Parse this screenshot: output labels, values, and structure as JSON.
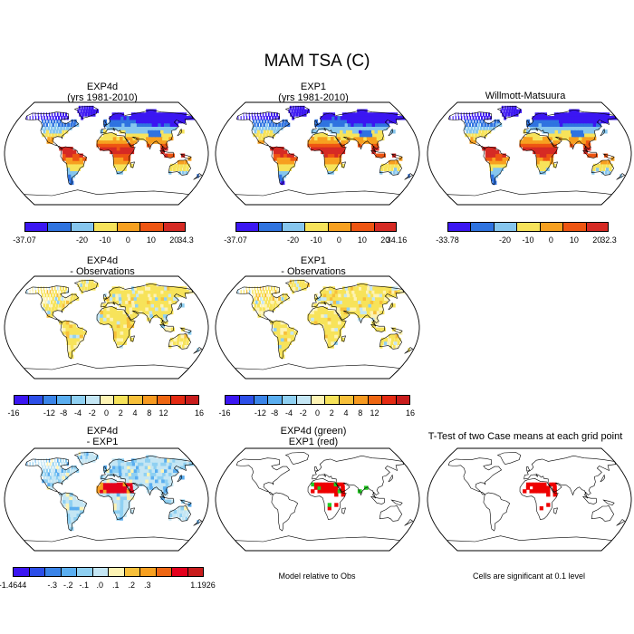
{
  "title": "MAM TSA (C)",
  "panels": [
    {
      "id": "exp4d",
      "title_lines": [
        "EXP4d",
        "(yrs 1981-2010)"
      ],
      "field": "absolute",
      "variant": 0
    },
    {
      "id": "exp1",
      "title_lines": [
        "EXP1",
        "(yrs 1981-2010)"
      ],
      "field": "absolute",
      "variant": 1
    },
    {
      "id": "obs",
      "title_lines": [
        "Willmott-Matsuura"
      ],
      "field": "absolute",
      "variant": 2
    },
    {
      "id": "exp4d-obs",
      "title_lines": [
        "EXP4d",
        "- Observations"
      ],
      "field": "bias",
      "variant": 0
    },
    {
      "id": "exp1-obs",
      "title_lines": [
        "EXP1",
        "- Observations"
      ],
      "field": "bias",
      "variant": 1
    },
    {
      "id": "exp4d-exp1",
      "title_lines": [
        "EXP4d",
        "- EXP1"
      ],
      "field": "diff",
      "variant": 0
    },
    {
      "id": "sig-green-red",
      "title_lines": [
        "EXP4d (green)",
        "EXP1 (red)"
      ],
      "field": "sigGreenRed",
      "variant": 0
    },
    {
      "id": "ttest",
      "title_lines": [
        "T-Test of two Case means at each grid point"
      ],
      "field": "sigRed",
      "variant": 0
    }
  ],
  "colorbars": [
    {
      "id": "cb-exp4d",
      "colors": [
        "#3b16f2",
        "#2f73e0",
        "#86c6ee",
        "#f7e35a",
        "#f7a020",
        "#ee5512",
        "#d62a24"
      ],
      "labels": [
        "-37.07",
        "-20",
        "-10",
        "0",
        "10",
        "20",
        "34.3"
      ]
    },
    {
      "id": "cb-exp1",
      "colors": [
        "#3b16f2",
        "#2f73e0",
        "#86c6ee",
        "#f7e35a",
        "#f7a020",
        "#ee5512",
        "#d62a24"
      ],
      "labels": [
        "-37.07",
        "-20",
        "-10",
        "0",
        "10",
        "20",
        "34.16"
      ]
    },
    {
      "id": "cb-obs",
      "colors": [
        "#3b16f2",
        "#2f73e0",
        "#86c6ee",
        "#f7e35a",
        "#f7a020",
        "#ee5512",
        "#d62a24"
      ],
      "labels": [
        "-33.78",
        "-20",
        "-10",
        "0",
        "10",
        "20",
        "32.3"
      ]
    },
    {
      "id": "cb-bias-1",
      "colors": [
        "#3b16f2",
        "#2c4ee8",
        "#3a84e8",
        "#5aaef0",
        "#8fd0f2",
        "#c4e6f4",
        "#fdf3b4",
        "#f7e35a",
        "#f7c03a",
        "#f79a20",
        "#ee6612",
        "#e42a12",
        "#c81c1c"
      ],
      "labels": [
        "-16",
        "-12",
        "-8",
        "-4",
        "-2",
        "0",
        "2",
        "4",
        "8",
        "12",
        "16"
      ]
    },
    {
      "id": "cb-bias-2",
      "colors": [
        "#3b16f2",
        "#2c4ee8",
        "#3a84e8",
        "#5aaef0",
        "#8fd0f2",
        "#c4e6f4",
        "#fdf3b4",
        "#f7e35a",
        "#f7c03a",
        "#f79a20",
        "#ee6612",
        "#e42a12",
        "#c81c1c"
      ],
      "labels": [
        "-16",
        "-12",
        "-8",
        "-4",
        "-2",
        "0",
        "2",
        "4",
        "8",
        "12",
        "16"
      ]
    },
    {
      "id": "cb-diff",
      "colors": [
        "#3b16f2",
        "#2c4ee8",
        "#3a84e8",
        "#5aaef0",
        "#8fd0f2",
        "#c4e6f4",
        "#fdf3b4",
        "#f7c03a",
        "#f7a020",
        "#ee6612",
        "#e4001c",
        "#c81c1c"
      ],
      "labels": [
        "-1.4644",
        "-.3",
        "-.2",
        "-.1",
        ".0",
        ".1",
        ".2",
        ".3",
        "1.1926"
      ]
    }
  ],
  "notes": {
    "model_relative": "Model relative to Obs",
    "significance": "Cells are significant at 0.1 level"
  },
  "palette": {
    "outline": "#000000",
    "sig_red": "#ee0000",
    "sig_green": "#22cc22"
  }
}
